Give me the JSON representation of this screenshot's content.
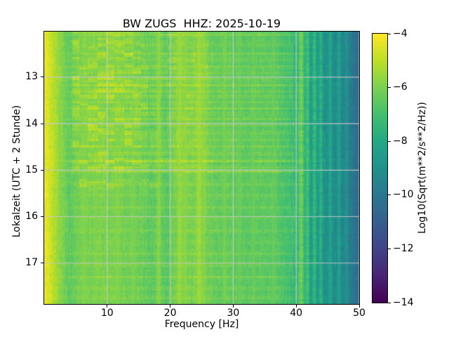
{
  "chart_data": {
    "type": "heatmap",
    "title": "BW ZUGS  HHZ: 2025-10-19",
    "xlabel": "Frequency [Hz]",
    "ylabel": "Lokalzeit (UTC + 2 Stunde)",
    "colorbar_label": "Log10(Sqrt(m**2/s**2/Hz))",
    "colormap": "viridis",
    "colormap_stops": [
      [
        0,
        "#440154"
      ],
      [
        0.1,
        "#482475"
      ],
      [
        0.2,
        "#414487"
      ],
      [
        0.3,
        "#355f8d"
      ],
      [
        0.4,
        "#2a788e"
      ],
      [
        0.5,
        "#21918c"
      ],
      [
        0.6,
        "#22a884"
      ],
      [
        0.7,
        "#44bf70"
      ],
      [
        0.8,
        "#7ad151"
      ],
      [
        0.9,
        "#bddf26"
      ],
      [
        1,
        "#fde725"
      ]
    ],
    "grid": true,
    "grid_color": "#c8c8c8",
    "xlim": [
      0,
      50
    ],
    "ylim_hours": [
      12.02,
      17.88
    ],
    "value_range": [
      -14,
      -4
    ],
    "x_ticks": [
      {
        "label": "10",
        "value": 10
      },
      {
        "label": "20",
        "value": 20
      },
      {
        "label": "30",
        "value": 30
      },
      {
        "label": "40",
        "value": 40
      },
      {
        "label": "50",
        "value": 50
      }
    ],
    "y_ticks": [
      {
        "label": "13",
        "value": 13
      },
      {
        "label": "14",
        "value": 14
      },
      {
        "label": "15",
        "value": 15
      },
      {
        "label": "16",
        "value": 16
      },
      {
        "label": "17",
        "value": 17
      }
    ],
    "colorbar_ticks": [
      {
        "label": "−4",
        "value": -4
      },
      {
        "label": "−6",
        "value": -6
      },
      {
        "label": "−8",
        "value": -8
      },
      {
        "label": "−10",
        "value": -10
      },
      {
        "label": "−12",
        "value": -12
      },
      {
        "label": "−14",
        "value": -14
      }
    ],
    "freq_profile": [
      [
        0,
        -4.35
      ],
      [
        0.5,
        -4.45
      ],
      [
        1,
        -4.75
      ],
      [
        1.5,
        -5.15
      ],
      [
        2.5,
        -5.7
      ],
      [
        4,
        -6.2
      ],
      [
        6,
        -6.1
      ],
      [
        9,
        -6.0
      ],
      [
        13,
        -6.15
      ],
      [
        16,
        -6.3
      ],
      [
        19,
        -6.35
      ],
      [
        21,
        -6.15
      ],
      [
        24,
        -6.05
      ],
      [
        26,
        -6.2
      ],
      [
        30,
        -6.4
      ],
      [
        34,
        -6.5
      ],
      [
        37,
        -6.6
      ],
      [
        39,
        -6.85
      ],
      [
        40.5,
        -7.6
      ],
      [
        42,
        -8.6
      ],
      [
        44,
        -9.0
      ],
      [
        46,
        -9.3
      ],
      [
        48,
        -9.6
      ],
      [
        49,
        -10.1
      ],
      [
        50,
        -10.6
      ]
    ],
    "vertical_lines": [
      {
        "f": 6.3,
        "v": -5.85,
        "w": 0.25
      },
      {
        "f": 8.1,
        "v": -6.0,
        "w": 0.2
      },
      {
        "f": 11.6,
        "v": -5.85,
        "w": 0.3
      },
      {
        "f": 14.1,
        "v": -5.95,
        "w": 0.25
      },
      {
        "f": 18.2,
        "v": -5.6,
        "w": 0.22
      },
      {
        "f": 21.5,
        "v": -5.4,
        "w": 0.28
      },
      {
        "f": 22.4,
        "v": -5.7,
        "w": 0.22
      },
      {
        "f": 24.6,
        "v": -5.3,
        "w": 0.3
      },
      {
        "f": 25.4,
        "v": -5.7,
        "w": 0.2
      },
      {
        "f": 28.6,
        "v": -6.0,
        "w": 0.2
      },
      {
        "f": 31.0,
        "v": -6.2,
        "w": 0.2
      },
      {
        "f": 33.2,
        "v": -6.2,
        "w": 0.2
      },
      {
        "f": 36.4,
        "v": -6.3,
        "w": 0.2
      },
      {
        "f": 40.8,
        "v": -5.8,
        "w": 0.3
      },
      {
        "f": 41.8,
        "v": -6.6,
        "w": 0.22
      },
      {
        "f": 42.9,
        "v": -6.9,
        "w": 0.22
      },
      {
        "f": 43.9,
        "v": -7.2,
        "w": 0.2
      },
      {
        "f": 45.4,
        "v": -7.8,
        "w": 0.2
      },
      {
        "f": 46.8,
        "v": -8.0,
        "w": 0.2
      },
      {
        "f": 48.0,
        "v": -8.7,
        "w": 0.18
      }
    ],
    "dark_bands": [
      {
        "f": 3.9,
        "dv": -0.3,
        "w": 0.7
      },
      {
        "f": 16.9,
        "dv": -0.2,
        "w": 0.8
      },
      {
        "f": 19.4,
        "dv": -0.3,
        "w": 0.5
      },
      {
        "f": 27.6,
        "dv": -0.15,
        "w": 1.0
      },
      {
        "f": 31.8,
        "dv": -0.12,
        "w": 1.2
      },
      {
        "f": 38.5,
        "dv": -0.2,
        "w": 0.8
      }
    ],
    "time_stripes": [
      {
        "t": 12.08,
        "amp": 0.5
      },
      {
        "t": 12.3,
        "amp": 0.3
      },
      {
        "t": 12.5,
        "amp": 0.5
      },
      {
        "t": 12.62,
        "amp": 0.35
      },
      {
        "t": 12.78,
        "amp": 0.4
      },
      {
        "t": 12.9,
        "amp": 0.3
      },
      {
        "t": 13.05,
        "amp": 0.5
      },
      {
        "t": 13.17,
        "amp": 0.6
      },
      {
        "t": 13.3,
        "amp": 0.45
      },
      {
        "t": 13.42,
        "amp": 0.55
      },
      {
        "t": 13.55,
        "amp": 0.4
      },
      {
        "t": 13.67,
        "amp": 0.6
      },
      {
        "t": 13.78,
        "amp": 0.35
      },
      {
        "t": 13.9,
        "amp": 0.5
      },
      {
        "t": 14.03,
        "amp": 0.45
      },
      {
        "t": 14.2,
        "amp": 0.55
      },
      {
        "t": 14.35,
        "amp": 0.4
      },
      {
        "t": 14.5,
        "amp": 0.6
      },
      {
        "t": 14.65,
        "amp": 0.45
      },
      {
        "t": 14.8,
        "amp": 0.75
      },
      {
        "t": 14.93,
        "amp": 0.5
      },
      {
        "t": 15.03,
        "amp": 0.8
      },
      {
        "t": 15.3,
        "amp": 0.35
      },
      {
        "t": 15.55,
        "amp": 0.3
      },
      {
        "t": 15.8,
        "amp": 0.4
      },
      {
        "t": 16.05,
        "amp": 0.3
      },
      {
        "t": 16.3,
        "amp": 0.35
      },
      {
        "t": 16.55,
        "amp": 0.3
      },
      {
        "t": 16.8,
        "amp": 0.35
      },
      {
        "t": 17.05,
        "amp": 0.3
      },
      {
        "t": 17.3,
        "amp": 0.4
      },
      {
        "t": 17.55,
        "amp": 0.35
      },
      {
        "t": 17.75,
        "amp": 0.3
      }
    ],
    "patches": [
      {
        "t0": 12.02,
        "t1": 15.0,
        "f0": 4.5,
        "f1": 16.5,
        "amp": 0.85
      },
      {
        "t0": 15.2,
        "t1": 15.5,
        "f0": 5.5,
        "f1": 18.0,
        "amp": 0.7
      },
      {
        "t0": 12.02,
        "t1": 15.0,
        "f0": 16.5,
        "f1": 26.0,
        "amp": 0.45
      }
    ]
  }
}
